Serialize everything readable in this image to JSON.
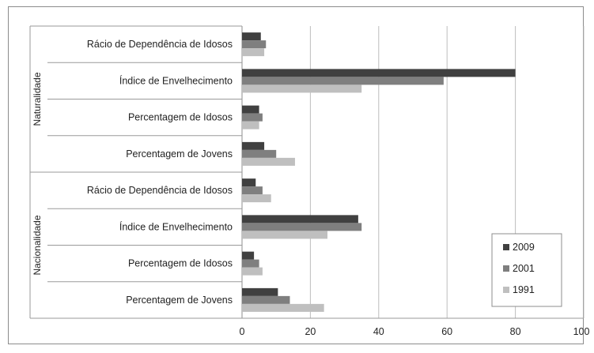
{
  "chart_data": {
    "type": "bar",
    "orientation": "horizontal",
    "groups": [
      {
        "label": "Naturalidade",
        "categories": [
          "Rácio de Dependência de Idosos",
          "Índice de Envelhecimento",
          "Percentagem de Idosos",
          "Percentagem de Jovens"
        ]
      },
      {
        "label": "Nacionalidade",
        "categories": [
          "Rácio de Dependência de Idosos",
          "Índice de Envelhecimento",
          "Percentagem de Idosos",
          "Percentagem de Jovens"
        ]
      }
    ],
    "series": [
      {
        "name": "2009",
        "color": "#404040",
        "values": [
          5.5,
          80,
          5,
          6.5,
          4,
          34,
          3.5,
          10.5
        ]
      },
      {
        "name": "2001",
        "color": "#7f7f7f",
        "values": [
          7,
          59,
          6,
          10,
          6,
          35,
          5,
          14
        ]
      },
      {
        "name": "1991",
        "color": "#bfbfbf",
        "values": [
          6.5,
          35,
          5,
          15.5,
          8.5,
          25,
          6,
          24
        ]
      }
    ],
    "xlim": [
      0,
      100
    ],
    "xticks": [
      0,
      20,
      40,
      60,
      80,
      100
    ],
    "grid": true,
    "legend_position": "bottom-right"
  }
}
